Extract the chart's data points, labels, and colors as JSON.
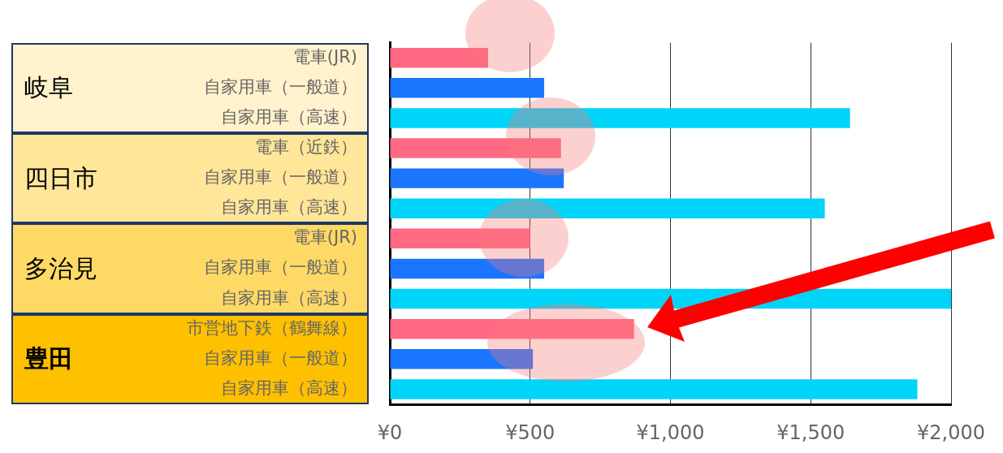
{
  "chart_data": {
    "type": "bar",
    "orientation": "horizontal",
    "categories": [
      "電車(JR)",
      "自家用車（一般道）",
      "自家用車（高速）",
      "電車（近鉄）",
      "自家用車（一般道）",
      "自家用車（高速）",
      "電車(JR)",
      "自家用車（一般道）",
      "自家用車（高速）",
      "市営地下鉄（鶴舞線）",
      "自家用車（一般道）",
      "自家用車（高速）"
    ],
    "values": [
      350,
      550,
      1640,
      610,
      620,
      1550,
      500,
      550,
      2000,
      870,
      510,
      1880
    ],
    "colors": [
      "#ff6984",
      "#1a75ff",
      "#00d4f8",
      "#ff6984",
      "#1a75ff",
      "#00d4f8",
      "#ff6984",
      "#1a75ff",
      "#00d4f8",
      "#ff6984",
      "#1a75ff",
      "#00d4f8"
    ],
    "xlim": [
      0,
      2000
    ],
    "xticks": [
      {
        "value": 0,
        "label": "¥0"
      },
      {
        "value": 500,
        "label": "¥500"
      },
      {
        "value": 1000,
        "label": "¥1,000"
      },
      {
        "value": 1500,
        "label": "¥1,500"
      },
      {
        "value": 2000,
        "label": "¥2,000"
      }
    ],
    "grid": "x",
    "annotations": [
      "岐阜",
      "四日市",
      "多治見",
      "豊田"
    ]
  }
}
